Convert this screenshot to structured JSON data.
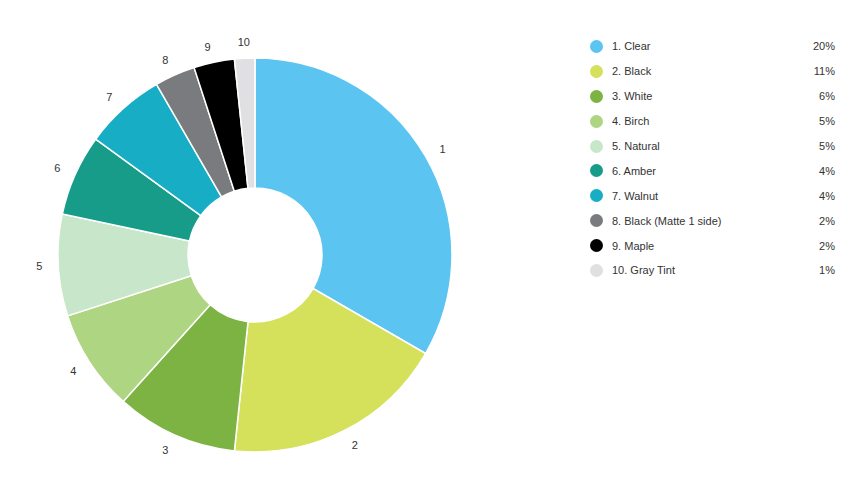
{
  "chart_data": {
    "type": "pie",
    "categories": [
      "1. Clear",
      "2. Black",
      "3. White",
      "4. Birch",
      "5. Natural",
      "6. Amber",
      "7. Walnut",
      "8. Black (Matte 1 side)",
      "9. Maple",
      "10. Gray Tint"
    ],
    "values": [
      20,
      11,
      6,
      5,
      5,
      4,
      4,
      2,
      2,
      1
    ],
    "value_labels": [
      "20%",
      "11%",
      "6%",
      "5%",
      "5%",
      "4%",
      "4%",
      "2%",
      "2%",
      "1%"
    ],
    "slice_labels": [
      "1",
      "2",
      "3",
      "4",
      "5",
      "6",
      "7",
      "8",
      "9",
      "10"
    ],
    "colors": [
      "#5bc4f1",
      "#d5e05b",
      "#7cb342",
      "#aed581",
      "#c8e6c9",
      "#179c8a",
      "#17aec5",
      "#7a7b7e",
      "#000000",
      "#e0e0e2"
    ],
    "legend": "right"
  }
}
